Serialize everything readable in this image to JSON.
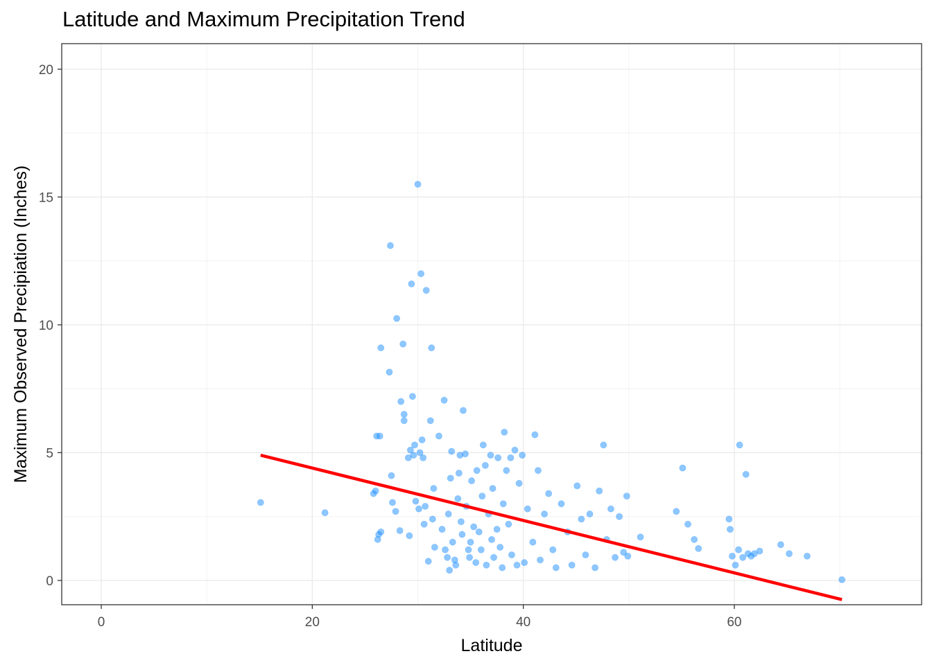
{
  "chart_data": {
    "type": "scatter",
    "title": "Latitude and Maximum Precipitation Trend",
    "xlabel": "Latitude",
    "ylabel": "Maximum Observed Precipiation (Inches)",
    "xlim": [
      -3.75,
      77.75
    ],
    "ylim": [
      -0.95,
      21
    ],
    "x_ticks": [
      0,
      20,
      40,
      60
    ],
    "y_ticks": [
      0,
      5,
      10,
      15,
      20
    ],
    "grid": true,
    "point_color": "#1E90FF",
    "point_alpha": 0.5,
    "trend_color": "#FF0000",
    "trend_line": {
      "x": [
        15.1,
        70.2
      ],
      "y": [
        4.9,
        -0.75
      ]
    },
    "points": [
      [
        15.1,
        3.05
      ],
      [
        21.2,
        2.65
      ],
      [
        26.2,
        1.6
      ],
      [
        26.3,
        1.8
      ],
      [
        26.5,
        1.9
      ],
      [
        25.8,
        3.4
      ],
      [
        26.0,
        3.5
      ],
      [
        26.1,
        5.65
      ],
      [
        26.4,
        5.65
      ],
      [
        26.5,
        9.1
      ],
      [
        27.3,
        8.15
      ],
      [
        27.4,
        13.1
      ],
      [
        27.5,
        4.1
      ],
      [
        27.6,
        3.05
      ],
      [
        27.9,
        2.7
      ],
      [
        28.0,
        10.25
      ],
      [
        28.3,
        1.95
      ],
      [
        28.4,
        7.0
      ],
      [
        28.6,
        9.25
      ],
      [
        28.7,
        6.5
      ],
      [
        28.7,
        6.25
      ],
      [
        29.1,
        4.8
      ],
      [
        29.2,
        1.75
      ],
      [
        29.3,
        5.1
      ],
      [
        29.4,
        11.6
      ],
      [
        29.5,
        7.2
      ],
      [
        29.6,
        4.9
      ],
      [
        29.7,
        5.3
      ],
      [
        29.8,
        3.1
      ],
      [
        30.0,
        15.5
      ],
      [
        30.1,
        2.8
      ],
      [
        30.2,
        5.0
      ],
      [
        30.3,
        12.0
      ],
      [
        30.4,
        5.5
      ],
      [
        30.5,
        4.8
      ],
      [
        30.6,
        2.2
      ],
      [
        30.7,
        2.9
      ],
      [
        30.8,
        11.35
      ],
      [
        31.0,
        0.75
      ],
      [
        31.2,
        6.25
      ],
      [
        31.3,
        9.1
      ],
      [
        31.4,
        2.4
      ],
      [
        31.5,
        3.6
      ],
      [
        31.6,
        1.3
      ],
      [
        32.0,
        5.65
      ],
      [
        32.3,
        2.0
      ],
      [
        32.5,
        7.05
      ],
      [
        32.6,
        1.2
      ],
      [
        32.8,
        0.9
      ],
      [
        32.9,
        2.6
      ],
      [
        33.0,
        0.4
      ],
      [
        33.1,
        4.0
      ],
      [
        33.2,
        5.05
      ],
      [
        33.3,
        1.5
      ],
      [
        33.5,
        0.8
      ],
      [
        33.6,
        0.6
      ],
      [
        33.8,
        3.2
      ],
      [
        33.9,
        4.2
      ],
      [
        34.0,
        4.9
      ],
      [
        34.1,
        2.3
      ],
      [
        34.2,
        1.8
      ],
      [
        34.3,
        6.65
      ],
      [
        34.5,
        4.95
      ],
      [
        34.6,
        2.9
      ],
      [
        34.8,
        1.2
      ],
      [
        34.9,
        0.9
      ],
      [
        35.0,
        1.5
      ],
      [
        35.1,
        3.9
      ],
      [
        35.3,
        2.1
      ],
      [
        35.5,
        0.7
      ],
      [
        35.6,
        4.3
      ],
      [
        35.8,
        1.9
      ],
      [
        36.0,
        1.2
      ],
      [
        36.1,
        3.3
      ],
      [
        36.2,
        5.3
      ],
      [
        36.4,
        4.5
      ],
      [
        36.5,
        0.6
      ],
      [
        36.7,
        2.6
      ],
      [
        36.9,
        4.9
      ],
      [
        37.0,
        1.6
      ],
      [
        37.1,
        3.6
      ],
      [
        37.2,
        0.9
      ],
      [
        37.5,
        2.0
      ],
      [
        37.6,
        4.8
      ],
      [
        37.8,
        1.3
      ],
      [
        38.0,
        0.5
      ],
      [
        38.1,
        3.0
      ],
      [
        38.2,
        5.8
      ],
      [
        38.4,
        4.3
      ],
      [
        38.6,
        2.2
      ],
      [
        38.8,
        4.8
      ],
      [
        38.9,
        1.0
      ],
      [
        39.2,
        5.1
      ],
      [
        39.4,
        0.6
      ],
      [
        39.6,
        3.8
      ],
      [
        39.9,
        4.9
      ],
      [
        40.1,
        0.7
      ],
      [
        40.4,
        2.8
      ],
      [
        40.9,
        1.5
      ],
      [
        41.1,
        5.7
      ],
      [
        41.4,
        4.3
      ],
      [
        41.6,
        0.8
      ],
      [
        42.0,
        2.6
      ],
      [
        42.4,
        3.4
      ],
      [
        42.8,
        1.2
      ],
      [
        43.1,
        0.5
      ],
      [
        43.6,
        3.0
      ],
      [
        44.2,
        1.9
      ],
      [
        44.6,
        0.6
      ],
      [
        45.1,
        3.7
      ],
      [
        45.5,
        2.4
      ],
      [
        45.9,
        1.0
      ],
      [
        46.3,
        2.6
      ],
      [
        46.8,
        0.5
      ],
      [
        47.2,
        3.5
      ],
      [
        47.6,
        5.3
      ],
      [
        47.9,
        1.6
      ],
      [
        48.3,
        2.8
      ],
      [
        48.7,
        0.9
      ],
      [
        49.1,
        2.5
      ],
      [
        49.5,
        1.1
      ],
      [
        49.8,
        3.3
      ],
      [
        49.9,
        0.95
      ],
      [
        51.1,
        1.7
      ],
      [
        54.5,
        2.7
      ],
      [
        55.1,
        4.4
      ],
      [
        55.6,
        2.2
      ],
      [
        56.2,
        1.6
      ],
      [
        56.6,
        1.25
      ],
      [
        59.5,
        2.4
      ],
      [
        59.6,
        2.0
      ],
      [
        59.8,
        0.95
      ],
      [
        60.1,
        0.6
      ],
      [
        60.4,
        1.2
      ],
      [
        60.5,
        5.3
      ],
      [
        60.8,
        0.9
      ],
      [
        61.1,
        4.15
      ],
      [
        61.3,
        1.05
      ],
      [
        61.6,
        0.95
      ],
      [
        61.9,
        1.05
      ],
      [
        62.4,
        1.15
      ],
      [
        64.4,
        1.4
      ],
      [
        65.2,
        1.05
      ],
      [
        66.9,
        0.95
      ],
      [
        70.2,
        0.03
      ]
    ]
  }
}
